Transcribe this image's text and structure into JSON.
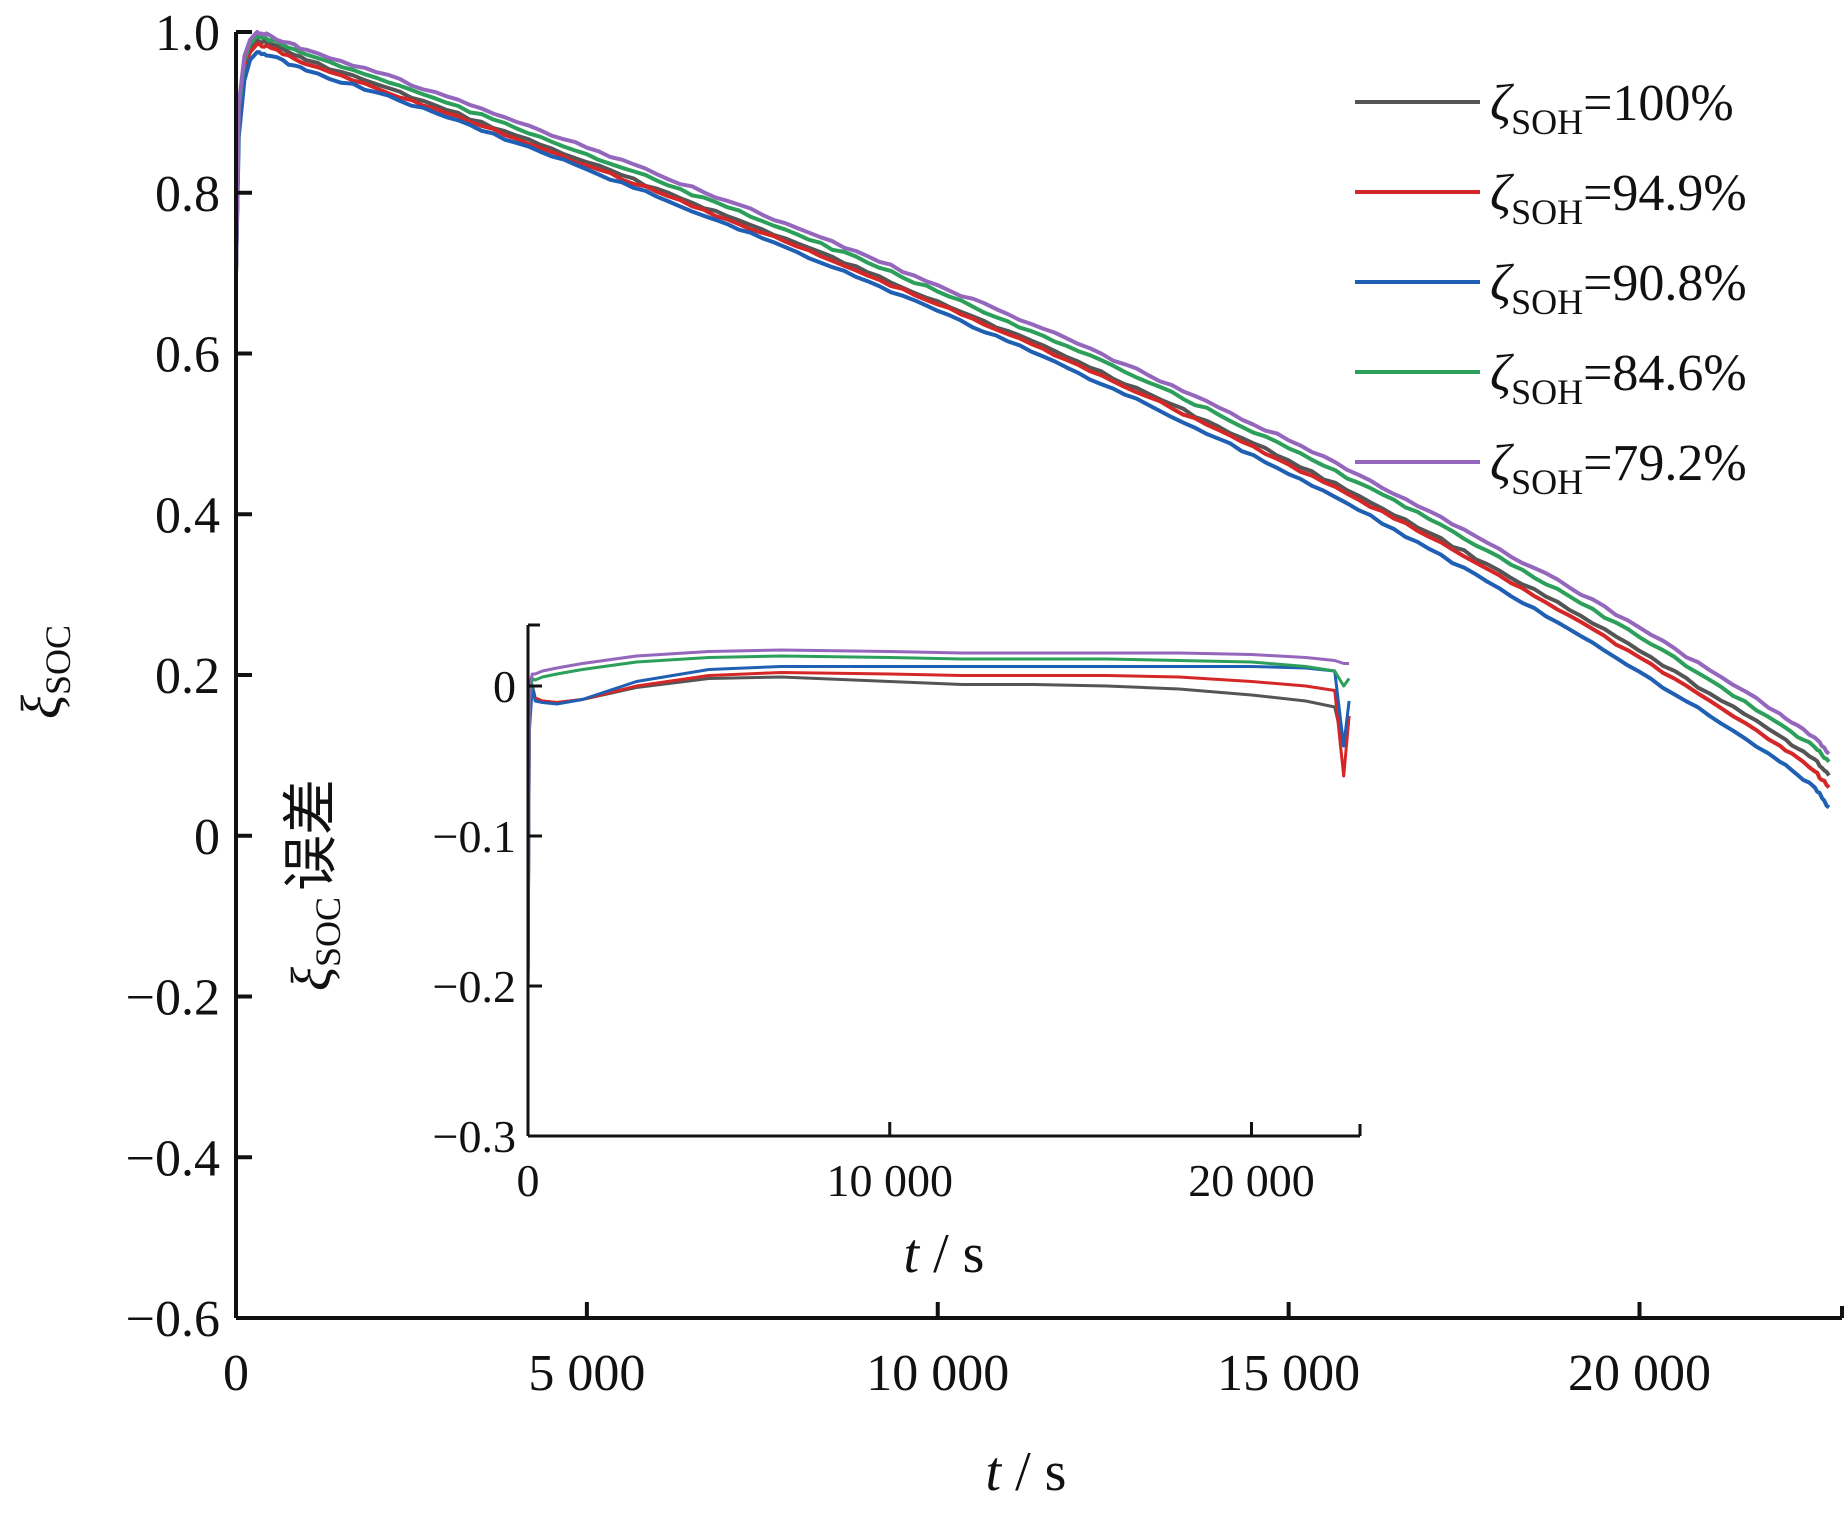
{
  "chart_data": [
    {
      "type": "line",
      "name": "main",
      "xlabel": {
        "var": "t",
        "unit": "s"
      },
      "ylabel": {
        "var": "ξ",
        "sub": "SOC",
        "suffix": ""
      },
      "xlim": [
        0,
        22800
      ],
      "ylim": [
        -0.6,
        1.0
      ],
      "xticks": [
        0,
        5000,
        10000,
        15000,
        20000
      ],
      "xtick_labels": [
        "0",
        "5 000",
        "10 000",
        "15 000",
        "20 000"
      ],
      "yticks": [
        -0.6,
        -0.4,
        -0.2,
        0,
        0.2,
        0.4,
        0.6,
        0.8,
        1.0
      ],
      "ytick_labels": [
        "−0.6",
        "−0.4",
        "−0.2",
        "0",
        "0.2",
        "0.4",
        "0.6",
        "0.8",
        "1.0"
      ],
      "grid": false,
      "legend_position": "top-right",
      "series": [
        {
          "name": "ζSOH=100%",
          "legend": {
            "var": "ζ",
            "sub": "SOH",
            "text": "=100%"
          },
          "color": "#555555",
          "x": [
            0,
            40,
            120,
            200,
            300,
            500,
            1000,
            2000,
            3000,
            4000,
            5000,
            6000,
            7000,
            8000,
            9000,
            10000,
            11000,
            12000,
            13000,
            14000,
            15000,
            16000,
            17000,
            18000,
            19000,
            20000,
            21000,
            22000,
            22500,
            22700
          ],
          "y": [
            0.7,
            0.9,
            0.96,
            0.98,
            0.99,
            0.985,
            0.965,
            0.935,
            0.903,
            0.871,
            0.838,
            0.805,
            0.771,
            0.737,
            0.701,
            0.665,
            0.628,
            0.59,
            0.55,
            0.509,
            0.467,
            0.423,
            0.377,
            0.33,
            0.281,
            0.23,
            0.177,
            0.124,
            0.095,
            0.075
          ]
        },
        {
          "name": "ζSOH=94.9%",
          "legend": {
            "var": "ζ",
            "sub": "SOH",
            "text": "=94.9%"
          },
          "color": "#d62728",
          "x": [
            0,
            40,
            120,
            200,
            300,
            500,
            1000,
            2000,
            3000,
            4000,
            5000,
            6000,
            7000,
            8000,
            9000,
            10000,
            11000,
            12000,
            13000,
            14000,
            15000,
            16000,
            17000,
            18000,
            19000,
            20000,
            21000,
            22000,
            22500,
            22700
          ],
          "y": [
            0.7,
            0.89,
            0.955,
            0.975,
            0.985,
            0.98,
            0.96,
            0.93,
            0.899,
            0.867,
            0.834,
            0.801,
            0.767,
            0.733,
            0.697,
            0.661,
            0.624,
            0.586,
            0.546,
            0.505,
            0.462,
            0.418,
            0.372,
            0.324,
            0.274,
            0.222,
            0.168,
            0.112,
            0.08,
            0.06
          ]
        },
        {
          "name": "ζSOH=90.8%",
          "legend": {
            "var": "ζ",
            "sub": "SOH",
            "text": "=90.8%"
          },
          "color": "#1f5fb4",
          "x": [
            0,
            40,
            120,
            200,
            300,
            500,
            1000,
            2000,
            3000,
            4000,
            5000,
            6000,
            7000,
            8000,
            9000,
            10000,
            11000,
            12000,
            13000,
            14000,
            15000,
            16000,
            17000,
            18000,
            19000,
            20000,
            21000,
            22000,
            22500,
            22700
          ],
          "y": [
            0.7,
            0.87,
            0.94,
            0.965,
            0.975,
            0.97,
            0.952,
            0.925,
            0.894,
            0.862,
            0.829,
            0.795,
            0.761,
            0.726,
            0.69,
            0.653,
            0.615,
            0.576,
            0.536,
            0.494,
            0.45,
            0.405,
            0.357,
            0.308,
            0.257,
            0.204,
            0.149,
            0.092,
            0.06,
            0.035
          ]
        },
        {
          "name": "ζSOH=84.6%",
          "legend": {
            "var": "ζ",
            "sub": "SOH",
            "text": "=84.6%"
          },
          "color": "#2ca05a",
          "x": [
            0,
            40,
            120,
            200,
            300,
            500,
            1000,
            2000,
            3000,
            4000,
            5000,
            6000,
            7000,
            8000,
            9000,
            10000,
            11000,
            12000,
            13000,
            14000,
            15000,
            16000,
            17000,
            18000,
            19000,
            20000,
            21000,
            22000,
            22500,
            22700
          ],
          "y": [
            0.7,
            0.905,
            0.965,
            0.985,
            0.995,
            0.99,
            0.972,
            0.943,
            0.912,
            0.88,
            0.848,
            0.815,
            0.782,
            0.748,
            0.713,
            0.677,
            0.64,
            0.603,
            0.564,
            0.524,
            0.482,
            0.439,
            0.394,
            0.347,
            0.298,
            0.247,
            0.194,
            0.139,
            0.11,
            0.092
          ]
        },
        {
          "name": "ζSOH=79.2%",
          "legend": {
            "var": "ζ",
            "sub": "SOH",
            "text": "=79.2%"
          },
          "color": "#9467bd",
          "x": [
            0,
            40,
            120,
            200,
            300,
            500,
            1000,
            2000,
            3000,
            4000,
            5000,
            6000,
            7000,
            8000,
            9000,
            10000,
            11000,
            12000,
            13000,
            14000,
            15000,
            16000,
            17000,
            18000,
            19000,
            20000,
            21000,
            22000,
            22500,
            22700
          ],
          "y": [
            0.7,
            0.91,
            0.97,
            0.99,
            1.0,
            0.995,
            0.978,
            0.95,
            0.92,
            0.888,
            0.856,
            0.823,
            0.79,
            0.756,
            0.721,
            0.685,
            0.649,
            0.612,
            0.573,
            0.533,
            0.492,
            0.449,
            0.404,
            0.357,
            0.309,
            0.259,
            0.206,
            0.152,
            0.122,
            0.102
          ]
        }
      ]
    },
    {
      "type": "line",
      "name": "inset",
      "xlabel": {
        "var": "t",
        "unit": "s"
      },
      "ylabel": {
        "var": "ξ",
        "sub": "SOC",
        "suffix": "误差"
      },
      "xlim": [
        0,
        23000
      ],
      "ylim": [
        -0.3,
        0.03
      ],
      "xticks": [
        0,
        10000,
        20000
      ],
      "xtick_labels": [
        "0",
        "10 000",
        "20 000"
      ],
      "yticks": [
        -0.3,
        -0.2,
        -0.1,
        0
      ],
      "ytick_labels": [
        "−0.3",
        "−0.2",
        "−0.1",
        "0"
      ],
      "grid": false,
      "series": [
        {
          "name": "ζSOH=100%",
          "color": "#555555",
          "x": [
            0,
            40,
            120,
            200,
            400,
            800,
            1500,
            3000,
            5000,
            7000,
            10000,
            12000,
            14000,
            16000,
            18000,
            20000,
            21500,
            22300,
            22550,
            22700
          ],
          "y": [
            -0.2,
            -0.02,
            0.0,
            -0.008,
            -0.01,
            -0.011,
            -0.009,
            -0.001,
            0.005,
            0.006,
            0.003,
            0.001,
            0.001,
            0.0,
            -0.002,
            -0.006,
            -0.01,
            -0.014,
            -0.04,
            -0.02
          ]
        },
        {
          "name": "ζSOH=94.9%",
          "color": "#d62728",
          "x": [
            0,
            40,
            120,
            200,
            400,
            800,
            1500,
            3000,
            5000,
            7000,
            10000,
            12000,
            14000,
            16000,
            18000,
            20000,
            21500,
            22300,
            22550,
            22700
          ],
          "y": [
            -0.2,
            -0.02,
            0.0,
            -0.008,
            -0.01,
            -0.011,
            -0.009,
            0.0,
            0.007,
            0.009,
            0.008,
            0.007,
            0.007,
            0.007,
            0.006,
            0.003,
            0.0,
            -0.003,
            -0.06,
            -0.02
          ]
        },
        {
          "name": "ζSOH=90.8%",
          "color": "#1f5fb4",
          "x": [
            0,
            40,
            120,
            200,
            400,
            800,
            1500,
            3000,
            5000,
            7000,
            10000,
            12000,
            14000,
            16000,
            18000,
            20000,
            21500,
            22300,
            22550,
            22700
          ],
          "y": [
            -0.2,
            -0.03,
            0.0,
            -0.01,
            -0.011,
            -0.012,
            -0.009,
            0.003,
            0.011,
            0.013,
            0.013,
            0.013,
            0.013,
            0.013,
            0.013,
            0.013,
            0.012,
            0.01,
            -0.04,
            -0.01
          ]
        },
        {
          "name": "ζSOH=84.6%",
          "color": "#2ca05a",
          "x": [
            0,
            40,
            120,
            200,
            400,
            800,
            1500,
            3000,
            5000,
            7000,
            10000,
            12000,
            14000,
            16000,
            18000,
            20000,
            21500,
            22300,
            22550,
            22700
          ],
          "y": [
            -0.2,
            -0.01,
            0.005,
            0.004,
            0.006,
            0.008,
            0.011,
            0.016,
            0.019,
            0.02,
            0.019,
            0.018,
            0.018,
            0.018,
            0.017,
            0.016,
            0.013,
            0.01,
            0.0,
            0.005
          ]
        },
        {
          "name": "ζSOH=79.2%",
          "color": "#9467bd",
          "x": [
            0,
            40,
            120,
            200,
            400,
            800,
            1500,
            3000,
            5000,
            7000,
            10000,
            12000,
            14000,
            16000,
            18000,
            20000,
            21500,
            22300,
            22550,
            22700
          ],
          "y": [
            -0.2,
            0.0,
            0.008,
            0.008,
            0.01,
            0.012,
            0.015,
            0.02,
            0.023,
            0.024,
            0.023,
            0.022,
            0.022,
            0.022,
            0.022,
            0.021,
            0.019,
            0.017,
            0.015,
            0.015
          ]
        }
      ]
    }
  ]
}
